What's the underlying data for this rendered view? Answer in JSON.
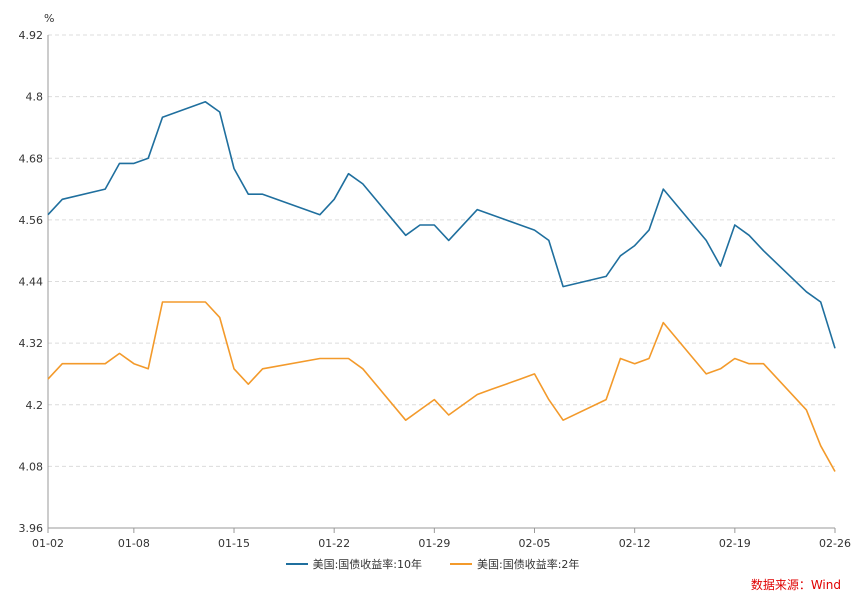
{
  "chart_data": {
    "type": "line",
    "unit_label": "%",
    "ylim": [
      3.96,
      4.92
    ],
    "y_ticks": [
      "4.92",
      "4.8",
      "4.68",
      "4.56",
      "4.44",
      "4.32",
      "4.2",
      "4.08",
      "3.96"
    ],
    "y_tick_values": [
      4.92,
      4.8,
      4.68,
      4.56,
      4.44,
      4.32,
      4.2,
      4.08,
      3.96
    ],
    "x_ticks": [
      "01-02",
      "01-08",
      "01-15",
      "01-22",
      "01-29",
      "02-05",
      "02-12",
      "02-19",
      "02-26"
    ],
    "x_tick_days": [
      0,
      6,
      13,
      20,
      27,
      34,
      41,
      48,
      55
    ],
    "grid": "horizontal-dashed",
    "legend_position": "bottom",
    "series": [
      {
        "name": "美国:国债收益率:10年",
        "color": "#1f6f9e",
        "x": [
          0,
          1,
          4,
          5,
          6,
          7,
          8,
          11,
          12,
          13,
          14,
          15,
          19,
          20,
          21,
          22,
          25,
          26,
          27,
          28,
          30,
          31,
          32,
          33,
          34,
          35,
          36,
          39,
          40,
          41,
          42,
          43,
          46,
          47,
          48,
          49,
          50,
          53,
          54,
          55
        ],
        "values": [
          4.57,
          4.6,
          4.62,
          4.67,
          4.67,
          4.68,
          4.76,
          4.79,
          4.77,
          4.66,
          4.61,
          4.61,
          4.57,
          4.6,
          4.65,
          4.63,
          4.53,
          4.55,
          4.55,
          4.52,
          4.58,
          4.57,
          4.56,
          4.55,
          4.54,
          4.52,
          4.43,
          4.45,
          4.49,
          4.51,
          4.54,
          4.62,
          4.52,
          4.47,
          4.55,
          4.53,
          4.5,
          4.42,
          4.4,
          4.31
        ]
      },
      {
        "name": "美国:国债收益率:2年",
        "color": "#f39a2b",
        "x": [
          0,
          1,
          4,
          5,
          6,
          7,
          8,
          11,
          12,
          13,
          14,
          15,
          19,
          20,
          21,
          22,
          25,
          26,
          27,
          28,
          30,
          31,
          32,
          33,
          34,
          35,
          36,
          39,
          40,
          41,
          42,
          43,
          46,
          47,
          48,
          49,
          50,
          53,
          54,
          55
        ],
        "values": [
          4.25,
          4.28,
          4.28,
          4.3,
          4.28,
          4.27,
          4.4,
          4.4,
          4.37,
          4.27,
          4.24,
          4.27,
          4.29,
          4.29,
          4.29,
          4.27,
          4.17,
          4.19,
          4.21,
          4.18,
          4.22,
          4.23,
          4.24,
          4.25,
          4.26,
          4.21,
          4.17,
          4.21,
          4.29,
          4.28,
          4.29,
          4.36,
          4.26,
          4.27,
          4.29,
          4.28,
          4.28,
          4.19,
          4.12,
          4.07
        ]
      }
    ]
  },
  "legend": {
    "s10": "美国:国债收益率:10年",
    "s2": "美国:国债收益率:2年"
  },
  "source": "数据来源：Wind",
  "colors": {
    "s10": "#1f6f9e",
    "s2": "#f39a2b",
    "source": "#e00000"
  }
}
